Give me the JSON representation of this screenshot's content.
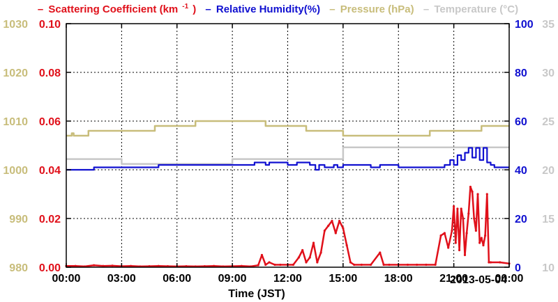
{
  "legend": [
    {
      "text": "Scattering Coefficient (km",
      "sup": "-1",
      "tail": ")",
      "color": "#e0101a"
    },
    {
      "text": "Relative Humidity(%)",
      "sup": "",
      "tail": "",
      "color": "#1010d0"
    },
    {
      "text": "Pressure (hPa)",
      "sup": "",
      "tail": "",
      "color": "#c8bd7b"
    },
    {
      "text": "Temperature (°C)",
      "sup": "",
      "tail": "",
      "color": "#c8c8c8"
    }
  ],
  "date_label": "2013-05-04",
  "chart_data": {
    "type": "line",
    "xlabel": "Time (JST)",
    "xlim_hours": [
      0,
      24
    ],
    "x_tick_labels": [
      "00:00",
      "03:00",
      "06:00",
      "09:00",
      "12:00",
      "15:00",
      "18:00",
      "21:00",
      "00:00"
    ],
    "grid": true,
    "axes": {
      "scattering": {
        "side": "left-inner",
        "range": [
          0,
          0.1
        ],
        "ticks": [
          "0.00",
          "0.02",
          "0.04",
          "0.06",
          "0.08",
          "0.10"
        ],
        "color": "#e0101a"
      },
      "pressure": {
        "side": "left-outer",
        "range": [
          980,
          1030
        ],
        "ticks": [
          "980",
          "990",
          "1000",
          "1010",
          "1020",
          "1030"
        ],
        "color": "#c8bd7b"
      },
      "humidity": {
        "side": "right-inner",
        "range": [
          0,
          100
        ],
        "ticks": [
          "0",
          "20",
          "40",
          "60",
          "80",
          "100"
        ],
        "color": "#1010d0"
      },
      "temperature": {
        "side": "right-outer",
        "range": [
          10,
          35
        ],
        "ticks": [
          "10",
          "15",
          "20",
          "25",
          "30",
          "35"
        ],
        "color": "#c8c8c8"
      }
    },
    "series": [
      {
        "name": "Pressure (hPa)",
        "axis": "pressure",
        "step": true,
        "x": [
          0,
          0.3,
          0.4,
          1.2,
          4.8,
          7.0,
          10.8,
          13.0,
          15.0,
          17.5,
          19.7,
          21.0,
          22.5,
          24.0
        ],
        "y": [
          1007,
          1007.5,
          1007,
          1008,
          1009,
          1010,
          1009,
          1008,
          1007,
          1007,
          1008,
          1008,
          1009,
          1009
        ]
      },
      {
        "name": "Temperature (°C)",
        "axis": "temperature",
        "step": true,
        "x": [
          0,
          3.0,
          9.0,
          15.0,
          24.0
        ],
        "y": [
          21.1,
          20.6,
          21.1,
          22.3,
          22.3
        ]
      },
      {
        "name": "Relative Humidity(%)",
        "axis": "humidity",
        "step": true,
        "x": [
          0,
          1.5,
          5.0,
          10.0,
          10.2,
          10.8,
          11.0,
          12.0,
          12.5,
          13.2,
          13.5,
          13.7,
          14.0,
          14.5,
          14.7,
          15.0,
          16.0,
          16.5,
          17.0,
          18.0,
          19.0,
          20.0,
          20.5,
          20.8,
          21.0,
          21.2,
          21.4,
          21.6,
          21.8,
          22.0,
          22.2,
          22.4,
          22.6,
          22.8,
          23.0,
          23.2,
          24.0
        ],
        "y": [
          40,
          41,
          42,
          42,
          43,
          42,
          43,
          42,
          43,
          42,
          40,
          42,
          41,
          42,
          41,
          42,
          42,
          41,
          42,
          41,
          41,
          41,
          42,
          44,
          42,
          46,
          44,
          47,
          49,
          45,
          49,
          44,
          49,
          43,
          42,
          41,
          41
        ]
      },
      {
        "name": "Scattering Coefficient (km-1)",
        "axis": "scattering",
        "step": false,
        "markers": true,
        "x": [
          0,
          0.5,
          1.0,
          1.5,
          2.0,
          2.5,
          3.0,
          3.5,
          4.0,
          4.5,
          5.0,
          5.5,
          6.0,
          6.5,
          7.0,
          7.5,
          8.0,
          8.5,
          9.0,
          9.5,
          10.0,
          10.4,
          10.6,
          10.8,
          11.0,
          11.3,
          11.6,
          12.0,
          12.3,
          12.6,
          12.8,
          13.0,
          13.2,
          13.4,
          13.6,
          13.8,
          14.0,
          14.2,
          14.4,
          14.6,
          14.8,
          15.0,
          15.2,
          15.4,
          15.6,
          16.0,
          16.5,
          17.0,
          17.2,
          17.5,
          18.0,
          18.5,
          19.0,
          19.5,
          20.0,
          20.3,
          20.5,
          20.7,
          20.9,
          21.0,
          21.1,
          21.2,
          21.3,
          21.4,
          21.5,
          21.6,
          21.7,
          21.8,
          21.9,
          22.0,
          22.1,
          22.2,
          22.3,
          22.4,
          22.5,
          22.6,
          22.7,
          22.8,
          22.9,
          23.0,
          23.5,
          24.0
        ],
        "y": [
          0.0005,
          0.0005,
          0.0003,
          0.0008,
          0.0005,
          0.0006,
          0.0004,
          0.0005,
          0.0003,
          0.0004,
          0.0005,
          0.0004,
          0.0003,
          0.0004,
          0.0003,
          0.0004,
          0.0005,
          0.0003,
          0.0004,
          0.0005,
          0.0003,
          0.0008,
          0.005,
          0.001,
          0.002,
          0.001,
          0.001,
          0.001,
          0.001,
          0.004,
          0.007,
          0.002,
          0.004,
          0.01,
          0.002,
          0.006,
          0.015,
          0.017,
          0.019,
          0.014,
          0.019,
          0.016,
          0.009,
          0.002,
          0.001,
          0.001,
          0.001,
          0.006,
          0.001,
          0.001,
          0.001,
          0.001,
          0.001,
          0.001,
          0.001,
          0.013,
          0.014,
          0.008,
          0.015,
          0.025,
          0.01,
          0.024,
          0.007,
          0.024,
          0.02,
          0.005,
          0.014,
          0.022,
          0.033,
          0.031,
          0.02,
          0.015,
          0.03,
          0.01,
          0.012,
          0.009,
          0.013,
          0.03,
          0.002,
          0.002,
          0.002,
          0.0015
        ]
      }
    ]
  }
}
